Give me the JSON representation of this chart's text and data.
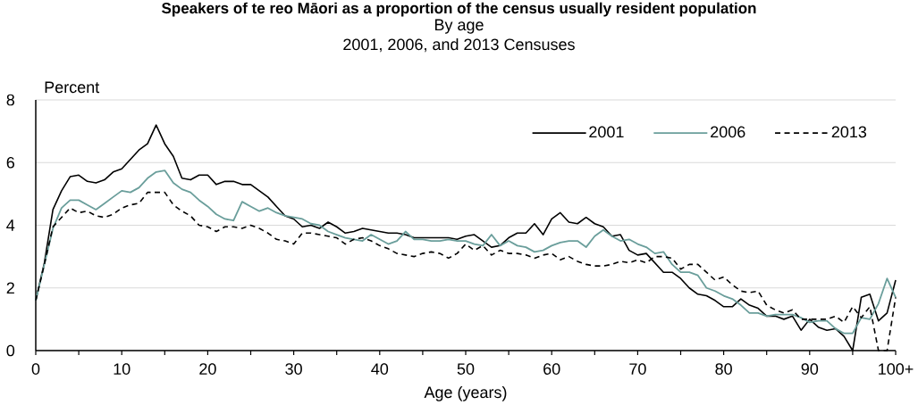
{
  "chart_data": {
    "type": "line",
    "title": "Speakers of te reo Māori as a proportion of the census usually resident population",
    "subtitle": "By age",
    "annotations": [
      "2001, 2006, and 2013 Censuses"
    ],
    "xlabel": "Age (years)",
    "ylabel": "Percent",
    "x": [
      0,
      1,
      2,
      3,
      4,
      5,
      6,
      7,
      8,
      9,
      10,
      11,
      12,
      13,
      14,
      15,
      16,
      17,
      18,
      19,
      20,
      21,
      22,
      23,
      24,
      25,
      26,
      27,
      28,
      29,
      30,
      31,
      32,
      33,
      34,
      35,
      36,
      37,
      38,
      39,
      40,
      41,
      42,
      43,
      44,
      45,
      46,
      47,
      48,
      49,
      50,
      51,
      52,
      53,
      54,
      55,
      56,
      57,
      58,
      59,
      60,
      61,
      62,
      63,
      64,
      65,
      66,
      67,
      68,
      69,
      70,
      71,
      72,
      73,
      74,
      75,
      76,
      77,
      78,
      79,
      80,
      81,
      82,
      83,
      84,
      85,
      86,
      87,
      88,
      89,
      90,
      91,
      92,
      93,
      94,
      95,
      96,
      97,
      98,
      99,
      100
    ],
    "series": [
      {
        "name": "2001",
        "color": "#000000",
        "line_style": "solid",
        "values": [
          1.6,
          2.8,
          4.5,
          5.1,
          5.55,
          5.6,
          5.4,
          5.35,
          5.45,
          5.7,
          5.8,
          6.1,
          6.4,
          6.6,
          7.2,
          6.6,
          6.2,
          5.5,
          5.45,
          5.6,
          5.6,
          5.3,
          5.4,
          5.4,
          5.3,
          5.3,
          5.1,
          4.9,
          4.6,
          4.3,
          4.2,
          3.95,
          4.0,
          3.9,
          4.1,
          3.95,
          3.75,
          3.8,
          3.9,
          3.85,
          3.8,
          3.75,
          3.75,
          3.7,
          3.6,
          3.6,
          3.6,
          3.6,
          3.6,
          3.55,
          3.65,
          3.7,
          3.5,
          3.3,
          3.35,
          3.6,
          3.75,
          3.75,
          4.05,
          3.7,
          4.2,
          4.4,
          4.1,
          4.05,
          4.25,
          4.05,
          3.95,
          3.65,
          3.7,
          3.2,
          3.05,
          3.1,
          2.8,
          2.5,
          2.5,
          2.3,
          2.0,
          1.8,
          1.75,
          1.6,
          1.4,
          1.4,
          1.65,
          1.45,
          1.35,
          1.1,
          1.1,
          1.0,
          1.1,
          0.65,
          1.0,
          0.75,
          0.65,
          0.7,
          0.45,
          0.0,
          1.7,
          1.8,
          0.95,
          1.2,
          2.25
        ]
      },
      {
        "name": "2006",
        "color": "#6a9e9b",
        "line_style": "solid",
        "values": [
          1.6,
          2.75,
          3.9,
          4.55,
          4.8,
          4.8,
          4.65,
          4.5,
          4.7,
          4.9,
          5.1,
          5.05,
          5.2,
          5.5,
          5.7,
          5.75,
          5.35,
          5.15,
          5.05,
          4.8,
          4.6,
          4.35,
          4.2,
          4.15,
          4.75,
          4.6,
          4.45,
          4.55,
          4.4,
          4.3,
          4.25,
          4.2,
          4.05,
          4.0,
          3.8,
          3.7,
          3.6,
          3.55,
          3.5,
          3.7,
          3.55,
          3.4,
          3.5,
          3.8,
          3.55,
          3.55,
          3.5,
          3.5,
          3.55,
          3.5,
          3.5,
          3.4,
          3.35,
          3.7,
          3.35,
          3.5,
          3.35,
          3.3,
          3.15,
          3.2,
          3.35,
          3.45,
          3.5,
          3.5,
          3.3,
          3.65,
          3.85,
          3.65,
          3.5,
          3.55,
          3.4,
          3.3,
          3.1,
          3.15,
          2.75,
          2.5,
          2.5,
          2.4,
          2.0,
          1.9,
          1.75,
          1.65,
          1.45,
          1.2,
          1.2,
          1.1,
          1.15,
          1.15,
          1.15,
          1.05,
          0.9,
          0.95,
          0.95,
          0.7,
          0.55,
          0.55,
          1.05,
          1.0,
          1.5,
          2.3,
          1.7
        ]
      },
      {
        "name": "2013",
        "color": "#000000",
        "line_style": "dashed",
        "values": [
          1.6,
          2.75,
          3.95,
          4.25,
          4.55,
          4.4,
          4.45,
          4.3,
          4.25,
          4.35,
          4.55,
          4.65,
          4.7,
          5.05,
          5.05,
          5.05,
          4.65,
          4.45,
          4.3,
          4.0,
          3.95,
          3.8,
          3.95,
          3.95,
          3.9,
          4.0,
          3.9,
          3.75,
          3.55,
          3.5,
          3.4,
          3.75,
          3.75,
          3.7,
          3.65,
          3.6,
          3.4,
          3.55,
          3.6,
          3.5,
          3.35,
          3.25,
          3.1,
          3.05,
          3.0,
          3.1,
          3.15,
          3.1,
          2.95,
          3.1,
          3.4,
          3.2,
          3.35,
          3.05,
          3.2,
          3.1,
          3.1,
          3.05,
          2.95,
          3.05,
          3.1,
          2.9,
          3.0,
          2.85,
          2.75,
          2.7,
          2.7,
          2.75,
          2.85,
          2.8,
          2.9,
          2.8,
          3.0,
          3.0,
          2.95,
          2.6,
          2.75,
          2.75,
          2.5,
          2.25,
          2.35,
          2.1,
          1.9,
          1.85,
          1.9,
          1.45,
          1.3,
          1.2,
          1.3,
          1.0,
          1.0,
          1.0,
          1.0,
          1.1,
          0.9,
          1.4,
          1.05,
          1.4,
          0.0,
          0.0,
          1.7
        ]
      }
    ],
    "xlim": [
      0,
      100
    ],
    "xticks": [
      0,
      {
        "value": 5,
        "label": null
      },
      10,
      {
        "value": 15,
        "label": null
      },
      20,
      {
        "value": 25,
        "label": null
      },
      30,
      {
        "value": 35,
        "label": null
      },
      40,
      {
        "value": 45,
        "label": null
      },
      50,
      {
        "value": 55,
        "label": null
      },
      60,
      {
        "value": 65,
        "label": null
      },
      70,
      {
        "value": 75,
        "label": null
      },
      80,
      {
        "value": 85,
        "label": null
      },
      90,
      {
        "value": 95,
        "label": null
      },
      {
        "value": 100,
        "label": "100+"
      }
    ],
    "ylim": [
      0,
      8
    ],
    "yticks": [
      0,
      2,
      4,
      6,
      8
    ],
    "grid": "y",
    "legend": "top right"
  }
}
